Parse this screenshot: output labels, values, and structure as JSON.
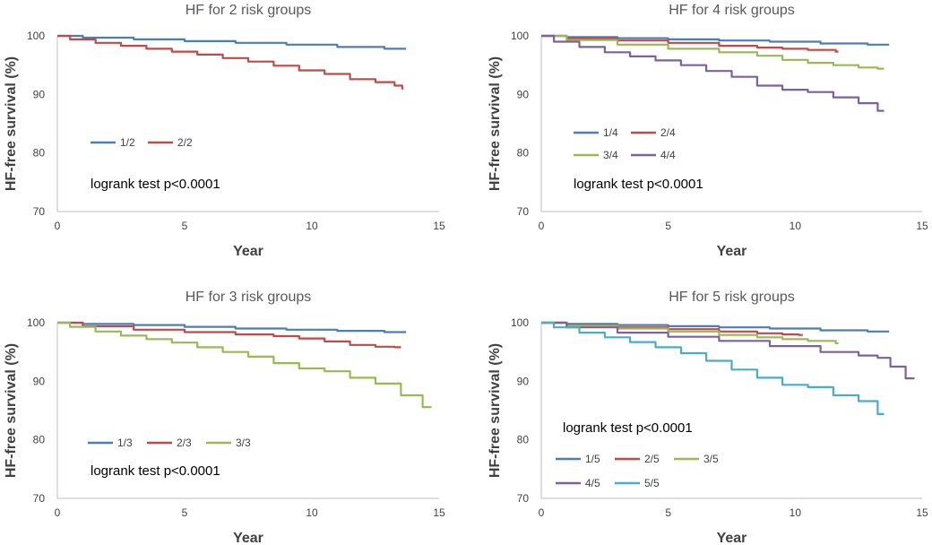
{
  "chart_data": [
    {
      "type": "line",
      "title": "HF for 2 risk groups",
      "xlabel": "Year",
      "ylabel": "HF-free  survival (%)",
      "xlim": [
        0,
        15
      ],
      "ylim": [
        70,
        100
      ],
      "xticks": [
        "0",
        "5",
        "10",
        "15"
      ],
      "yticks": [
        "70",
        "80",
        "90",
        "100"
      ],
      "annotation": "logrank test p<0.0001",
      "series": [
        {
          "name": "1/2",
          "color": "#4a7ebb",
          "x": [
            0,
            2,
            4,
            6,
            8,
            10,
            12,
            13.7
          ],
          "y": [
            100,
            99.7,
            99.4,
            99.1,
            98.8,
            98.5,
            98.1,
            97.8
          ]
        },
        {
          "name": "2/2",
          "color": "#be4b48",
          "x": [
            0,
            1,
            2,
            3,
            4,
            5,
            6,
            7,
            8,
            9,
            10,
            11,
            12,
            13,
            13.5,
            13.6
          ],
          "y": [
            100,
            99.4,
            98.8,
            98.3,
            97.8,
            97.3,
            96.8,
            96.2,
            95.6,
            94.9,
            94.1,
            93.5,
            92.6,
            92.1,
            91.5,
            91.0
          ]
        }
      ]
    },
    {
      "type": "line",
      "title": "HF for 4 risk groups",
      "xlabel": "Year",
      "ylabel": "HF-free  survival (%)",
      "xlim": [
        0,
        15
      ],
      "ylim": [
        70,
        100
      ],
      "xticks": [
        "0",
        "5",
        "10",
        "15"
      ],
      "yticks": [
        "70",
        "80",
        "90",
        "100"
      ],
      "annotation": "logrank test p<0.0001",
      "series": [
        {
          "name": "1/4",
          "color": "#4a7ebb",
          "x": [
            0,
            2,
            4,
            6,
            8,
            10,
            12,
            13.7
          ],
          "y": [
            100,
            99.8,
            99.6,
            99.4,
            99.2,
            99.0,
            98.7,
            98.5
          ]
        },
        {
          "name": "2/4",
          "color": "#be4b48",
          "x": [
            0,
            2,
            4,
            6,
            8,
            9,
            10,
            11,
            11.5,
            11.7
          ],
          "y": [
            100,
            99.6,
            99.2,
            98.8,
            98.3,
            98.0,
            97.8,
            97.6,
            97.6,
            97.3
          ]
        },
        {
          "name": "3/4",
          "color": "#98b954",
          "x": [
            0,
            2,
            4,
            6,
            8,
            9,
            10,
            11,
            12,
            13,
            13.5
          ],
          "y": [
            100,
            99.3,
            98.5,
            97.8,
            97.2,
            96.6,
            95.9,
            95.4,
            95.0,
            94.6,
            94.4
          ]
        },
        {
          "name": "4/4",
          "color": "#7d60a0",
          "x": [
            0,
            1,
            2,
            3,
            4,
            5,
            6,
            7,
            8,
            9,
            10,
            11,
            12,
            13,
            13.5
          ],
          "y": [
            100,
            99.0,
            98.1,
            97.2,
            96.5,
            95.8,
            95.0,
            94.0,
            93.0,
            91.5,
            90.8,
            90.4,
            89.5,
            88.5,
            87.2
          ]
        }
      ]
    },
    {
      "type": "line",
      "title": "HF for 3 risk groups",
      "xlabel": "Year",
      "ylabel": "HF-free  survival (%)",
      "xlim": [
        0,
        15
      ],
      "ylim": [
        70,
        100
      ],
      "xticks": [
        "0",
        "5",
        "10",
        "15"
      ],
      "yticks": [
        "70",
        "80",
        "90",
        "100"
      ],
      "annotation": "logrank test p<0.0001",
      "series": [
        {
          "name": "1/3",
          "color": "#4a7ebb",
          "x": [
            0,
            2,
            4,
            6,
            8,
            10,
            12,
            13.7
          ],
          "y": [
            100,
            99.8,
            99.6,
            99.3,
            99.0,
            98.8,
            98.6,
            98.4
          ]
        },
        {
          "name": "2/3",
          "color": "#be4b48",
          "x": [
            0,
            2,
            4,
            6,
            8,
            9,
            10,
            11,
            12,
            13,
            13.5
          ],
          "y": [
            100,
            99.4,
            98.8,
            98.4,
            98.0,
            97.7,
            97.3,
            96.8,
            96.2,
            95.9,
            95.8
          ]
        },
        {
          "name": "3/3",
          "color": "#98b954",
          "x": [
            0,
            1,
            2,
            3,
            4,
            5,
            6,
            7,
            8,
            9,
            10,
            11,
            12,
            13,
            14,
            14.7
          ],
          "y": [
            100,
            99.3,
            98.5,
            97.8,
            97.2,
            96.6,
            95.8,
            95.0,
            94.2,
            93.1,
            92.2,
            91.7,
            90.6,
            89.6,
            87.6,
            85.6
          ]
        }
      ]
    },
    {
      "type": "line",
      "title": "HF for 5 risk groups",
      "xlabel": "Year",
      "ylabel": "HF-free  survival (%)",
      "xlim": [
        0,
        15
      ],
      "ylim": [
        70,
        100
      ],
      "xticks": [
        "0",
        "5",
        "10",
        "15"
      ],
      "yticks": [
        "70",
        "80",
        "90",
        "100"
      ],
      "annotation": "logrank test p<0.0001",
      "series": [
        {
          "name": "1/5",
          "color": "#4a7ebb",
          "x": [
            0,
            2,
            4,
            6,
            8,
            10,
            12,
            13.7
          ],
          "y": [
            100,
            99.8,
            99.6,
            99.4,
            99.2,
            99.0,
            98.7,
            98.5
          ]
        },
        {
          "name": "2/5",
          "color": "#be4b48",
          "x": [
            0,
            2,
            4,
            6,
            8,
            9,
            10,
            10.3
          ],
          "y": [
            100,
            99.6,
            99.2,
            98.9,
            98.5,
            98.2,
            98.0,
            97.9
          ]
        },
        {
          "name": "3/5",
          "color": "#98b954",
          "x": [
            0,
            2,
            4,
            6,
            8,
            9,
            10,
            11,
            11.5,
            11.7
          ],
          "y": [
            100,
            99.5,
            99.0,
            98.5,
            97.9,
            97.5,
            97.2,
            96.9,
            96.9,
            96.5
          ]
        },
        {
          "name": "4/5",
          "color": "#7d60a0",
          "x": [
            0,
            2,
            4,
            6,
            8,
            10,
            12,
            13,
            13.5,
            14,
            14.7
          ],
          "y": [
            100,
            99.2,
            98.3,
            97.6,
            96.9,
            96.0,
            95.0,
            94.4,
            94.0,
            92.5,
            90.5
          ]
        },
        {
          "name": "5/5",
          "color": "#4bacc6",
          "x": [
            0,
            1,
            2,
            3,
            4,
            5,
            6,
            7,
            8,
            9,
            10,
            11,
            12,
            13,
            13.5
          ],
          "y": [
            100,
            99.2,
            98.3,
            97.5,
            96.7,
            95.8,
            94.8,
            93.5,
            92.0,
            90.6,
            89.4,
            89.0,
            87.6,
            86.6,
            84.4
          ]
        }
      ]
    }
  ]
}
